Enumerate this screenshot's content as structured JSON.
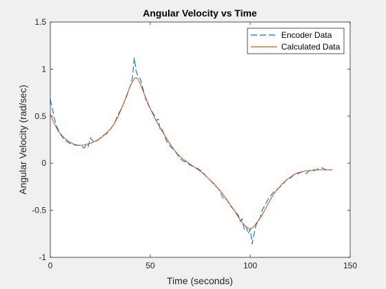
{
  "chart_data": {
    "type": "line",
    "title": "Angular Velocity vs Time",
    "xlabel": "Time (seconds)",
    "ylabel": "Angular Velocity (rad/sec)",
    "xlim": [
      0,
      150
    ],
    "ylim": [
      -1,
      1.5
    ],
    "xticks": [
      0,
      50,
      100,
      150
    ],
    "yticks": [
      -1,
      -0.5,
      0,
      0.5,
      1,
      1.5
    ],
    "xtick_labels": [
      "0",
      "50",
      "100",
      "150"
    ],
    "ytick_labels": [
      "-1",
      "-0.5",
      "0",
      "0.5",
      "1",
      "1.5"
    ],
    "grid": false,
    "legend_position": "top-right",
    "series": [
      {
        "name": "Encoder Data",
        "color": "#0072BD",
        "style": "dashed",
        "x": [
          0,
          1,
          2,
          3,
          5,
          7,
          9,
          11,
          13,
          15,
          17,
          18,
          19,
          20,
          22,
          24,
          26,
          28,
          30,
          32,
          34,
          36,
          38,
          39,
          40,
          41,
          42,
          43,
          44,
          45,
          46,
          47,
          48,
          50,
          52,
          53,
          54,
          55,
          56,
          58,
          60,
          62,
          64,
          66,
          68,
          70,
          72,
          74,
          76,
          78,
          80,
          82,
          84,
          86,
          87,
          88,
          90,
          92,
          94,
          95,
          96,
          97,
          98,
          99,
          100,
          101,
          102,
          103,
          104,
          105,
          106,
          108,
          110,
          112,
          114,
          116,
          118,
          120,
          122,
          124,
          126,
          128,
          130,
          132,
          134,
          136,
          138,
          140,
          141
        ],
        "y": [
          0.68,
          0.58,
          0.48,
          0.4,
          0.31,
          0.25,
          0.22,
          0.2,
          0.19,
          0.19,
          0.16,
          0.2,
          0.18,
          0.27,
          0.22,
          0.25,
          0.29,
          0.31,
          0.36,
          0.42,
          0.52,
          0.6,
          0.7,
          0.76,
          0.82,
          0.9,
          1.12,
          0.97,
          0.92,
          0.9,
          0.82,
          0.74,
          0.66,
          0.58,
          0.51,
          0.45,
          0.47,
          0.35,
          0.36,
          0.24,
          0.18,
          0.14,
          0.08,
          0.03,
          0.01,
          -0.02,
          -0.04,
          -0.06,
          -0.09,
          -0.14,
          -0.18,
          -0.23,
          -0.27,
          -0.35,
          -0.39,
          -0.38,
          -0.45,
          -0.5,
          -0.55,
          -0.62,
          -0.59,
          -0.7,
          -0.67,
          -0.75,
          -0.7,
          -0.86,
          -0.74,
          -0.65,
          -0.62,
          -0.58,
          -0.5,
          -0.42,
          -0.35,
          -0.3,
          -0.27,
          -0.23,
          -0.18,
          -0.16,
          -0.12,
          -0.11,
          -0.09,
          -0.11,
          -0.07,
          -0.08,
          -0.06,
          -0.05,
          -0.07,
          -0.07,
          -0.07
        ]
      },
      {
        "name": "Calculated Data",
        "color": "#D95319",
        "style": "solid",
        "x": [
          0,
          2,
          4,
          6,
          8,
          10,
          12,
          14,
          16,
          18,
          20,
          22,
          24,
          26,
          28,
          30,
          32,
          34,
          36,
          38,
          40,
          42,
          43,
          44,
          46,
          48,
          50,
          52,
          54,
          56,
          58,
          60,
          62,
          64,
          66,
          68,
          70,
          72,
          74,
          76,
          78,
          80,
          82,
          84,
          86,
          88,
          90,
          92,
          94,
          96,
          98,
          100,
          102,
          104,
          106,
          108,
          110,
          112,
          114,
          116,
          118,
          120,
          122,
          124,
          126,
          128,
          130,
          132,
          134,
          136,
          138,
          140,
          141
        ],
        "y": [
          0.52,
          0.42,
          0.34,
          0.29,
          0.25,
          0.22,
          0.2,
          0.19,
          0.19,
          0.2,
          0.21,
          0.23,
          0.25,
          0.28,
          0.32,
          0.36,
          0.42,
          0.5,
          0.6,
          0.71,
          0.82,
          0.9,
          0.91,
          0.89,
          0.79,
          0.68,
          0.58,
          0.49,
          0.41,
          0.34,
          0.27,
          0.2,
          0.14,
          0.09,
          0.05,
          0.02,
          -0.01,
          -0.04,
          -0.07,
          -0.1,
          -0.14,
          -0.18,
          -0.22,
          -0.27,
          -0.32,
          -0.38,
          -0.44,
          -0.5,
          -0.57,
          -0.63,
          -0.68,
          -0.7,
          -0.67,
          -0.61,
          -0.55,
          -0.47,
          -0.39,
          -0.32,
          -0.27,
          -0.22,
          -0.18,
          -0.15,
          -0.12,
          -0.1,
          -0.09,
          -0.08,
          -0.08,
          -0.07,
          -0.07,
          -0.07,
          -0.07,
          -0.07,
          -0.07
        ]
      }
    ]
  }
}
